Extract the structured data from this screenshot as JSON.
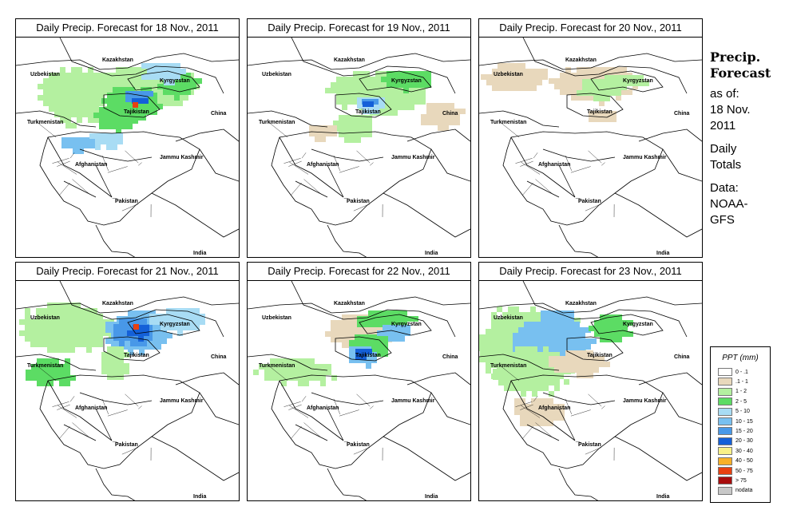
{
  "panels": [
    {
      "title": "Daily Precip. Forecast for  18 Nov., 2011",
      "day": 0
    },
    {
      "title": "Daily Precip. Forecast for  19 Nov., 2011",
      "day": 1
    },
    {
      "title": "Daily Precip. Forecast for  20 Nov., 2011",
      "day": 2
    },
    {
      "title": "Daily Precip. Forecast for  21 Nov., 2011",
      "day": 3
    },
    {
      "title": "Daily Precip. Forecast for  22 Nov., 2011",
      "day": 4
    },
    {
      "title": "Daily Precip. Forecast for  23 Nov., 2011",
      "day": 5
    }
  ],
  "countries": [
    "Kazakhstan",
    "Uzbekistan",
    "Kyrgyzstan",
    "Tajikistan",
    "Turkmenistan",
    "China",
    "Afghanistan",
    "Jammu Kashmir",
    "Pakistan",
    "India"
  ],
  "side": {
    "heading1": "Precip.",
    "heading2": "Forecast",
    "asof1": "as of:",
    "asof2": "18 Nov.",
    "asof3": "2011",
    "totals1": "Daily",
    "totals2": "Totals",
    "data1": "Data:",
    "data2": "NOAA-",
    "data3": "GFS"
  },
  "legend": {
    "title": "PPT (mm)",
    "items": [
      {
        "label": "0 - .1",
        "color": "#ffffff"
      },
      {
        "label": ".1 - 1",
        "color": "#e8d8bc"
      },
      {
        "label": "1 - 2",
        "color": "#b4f0a0"
      },
      {
        "label": "2 - 5",
        "color": "#5cdc64"
      },
      {
        "label": "5 - 10",
        "color": "#a8dcf4"
      },
      {
        "label": "10 - 15",
        "color": "#78c0f0"
      },
      {
        "label": "15 - 20",
        "color": "#4898e8"
      },
      {
        "label": "20 - 30",
        "color": "#1460d8"
      },
      {
        "label": "30 - 40",
        "color": "#f8f088"
      },
      {
        "label": "40 - 50",
        "color": "#f8b028"
      },
      {
        "label": "50 - 75",
        "color": "#e84010"
      },
      {
        "label": "> 75",
        "color": "#a80c0c"
      },
      {
        "label": "nodata",
        "color": "#c8c8c8"
      }
    ]
  }
}
